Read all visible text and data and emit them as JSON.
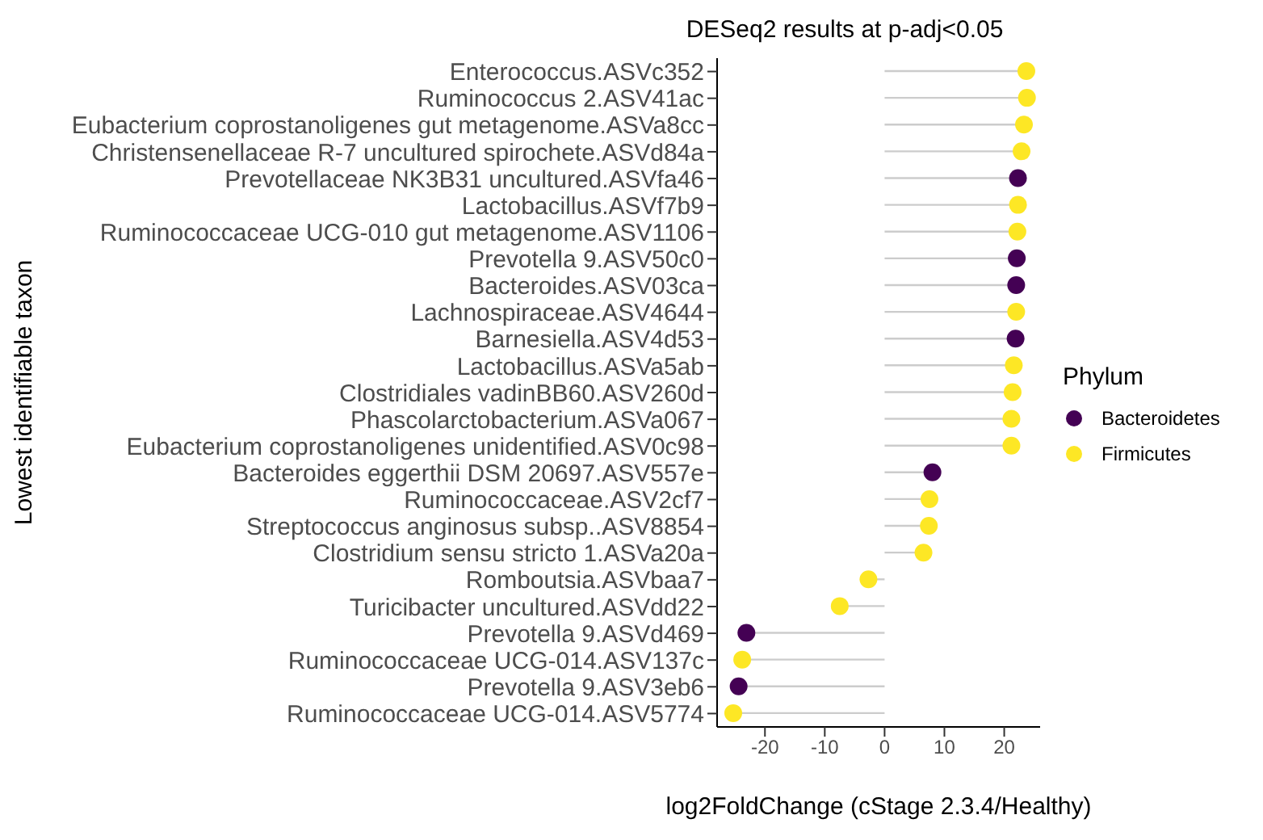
{
  "chart_data": {
    "type": "lollipop",
    "orientation": "horizontal",
    "title": "DESeq2 results at p-adj<0.05",
    "xlabel": "log2FoldChange (cStage 2.3.4/Healthy)",
    "ylabel": "Lowest identifiable taxon",
    "legend_title": "Phylum",
    "legend": "right",
    "grid": false,
    "marker": "circle",
    "categories": [
      "Enterococcus.ASVc352",
      "Ruminococcus 2.ASV41ac",
      "Eubacterium coprostanoligenes gut metagenome.ASVa8cc",
      "Christensenellaceae R-7 uncultured spirochete.ASVd84a",
      "Prevotellaceae NK3B31 uncultured.ASVfa46",
      "Lactobacillus.ASVf7b9",
      "Ruminococcaceae UCG-010 gut metagenome.ASV1106",
      "Prevotella 9.ASV50c0",
      "Bacteroides.ASV03ca",
      "Lachnospiraceae.ASV4644",
      "Barnesiella.ASV4d53",
      "Lactobacillus.ASVa5ab",
      "Clostridiales vadinBB60.ASV260d",
      "Phascolarctobacterium.ASVa067",
      "Eubacterium coprostanoligenes unidentified.ASV0c98",
      "Bacteroides eggerthii DSM 20697.ASV557e",
      "Ruminococcaceae.ASV2cf7",
      "Streptococcus anginosus subsp..ASV8854",
      "Clostridium sensu stricto 1.ASVa20a",
      "Romboutsia.ASVbaa7",
      "Turicibacter uncultured.ASVdd22",
      "Prevotella 9.ASVd469",
      "Ruminococcaceae UCG-014.ASV137c",
      "Prevotella 9.ASV3eb6",
      "Ruminococcaceae UCG-014.ASV5774"
    ],
    "xlim": [
      -28,
      26
    ],
    "xticks": [
      -20,
      -10,
      0,
      10,
      20
    ],
    "series": [
      {
        "name": "Bacteroidetes",
        "color": "#440154",
        "values": [
          null,
          null,
          null,
          null,
          22.3,
          null,
          null,
          22.1,
          22.0,
          null,
          21.9,
          null,
          null,
          null,
          null,
          8.0,
          null,
          null,
          null,
          null,
          null,
          -23.1,
          null,
          -24.4,
          null
        ]
      },
      {
        "name": "Firmicutes",
        "color": "#fde725",
        "values": [
          23.7,
          23.8,
          23.3,
          22.9,
          null,
          22.3,
          22.2,
          null,
          null,
          22.0,
          null,
          21.6,
          21.4,
          21.2,
          21.2,
          null,
          7.5,
          7.4,
          6.5,
          -2.7,
          -7.5,
          null,
          -23.8,
          null,
          -25.3
        ]
      }
    ]
  }
}
